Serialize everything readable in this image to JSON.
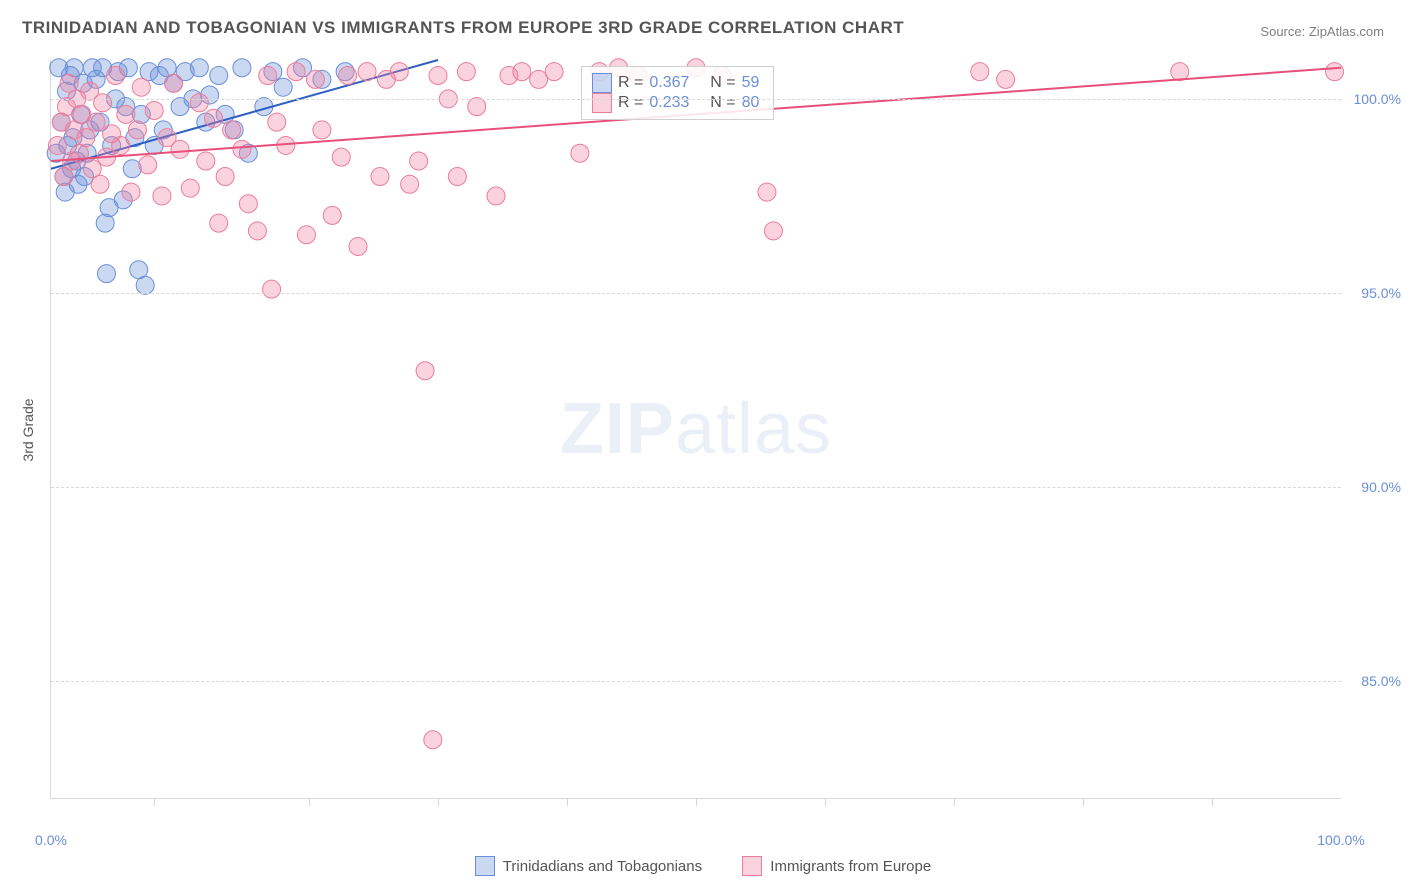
{
  "title": "TRINIDADIAN AND TOBAGONIAN VS IMMIGRANTS FROM EUROPE 3RD GRADE CORRELATION CHART",
  "source_label": "Source:",
  "source_value": "ZipAtlas.com",
  "yaxis_label": "3rd Grade",
  "watermark_a": "ZIP",
  "watermark_b": "atlas",
  "chart": {
    "type": "scatter",
    "xlim": [
      0,
      100
    ],
    "ylim": [
      82,
      101
    ],
    "background_color": "#ffffff",
    "grid_color": "#d8d8d8",
    "grid_dash": true,
    "marker_radius": 9,
    "marker_opacity": 0.55,
    "line_width": 2,
    "yticks": [
      {
        "v": 85,
        "label": "85.0%"
      },
      {
        "v": 90,
        "label": "90.0%"
      },
      {
        "v": 95,
        "label": "95.0%"
      },
      {
        "v": 100,
        "label": "100.0%"
      }
    ],
    "xticks_minor": [
      8,
      20,
      30,
      40,
      50,
      60,
      70,
      80,
      90
    ],
    "xtick_labels": [
      {
        "v": 0,
        "label": "0.0%"
      },
      {
        "v": 100,
        "label": "100.0%"
      }
    ],
    "series": [
      {
        "id": "trinidad",
        "name": "Trinidadians and Tobagonians",
        "color_fill": "rgba(106,143,216,0.35)",
        "color_stroke": "#6a8fd8",
        "trend_color": "#2d5fc4",
        "r_value": "0.367",
        "n_value": "59",
        "trend": {
          "x1": 0,
          "y1": 98.2,
          "x2": 30,
          "y2": 101
        },
        "points": [
          [
            0.4,
            98.6
          ],
          [
            0.6,
            100.8
          ],
          [
            0.8,
            99.4
          ],
          [
            1.0,
            98.0
          ],
          [
            1.1,
            97.6
          ],
          [
            1.2,
            100.2
          ],
          [
            1.3,
            98.8
          ],
          [
            1.5,
            100.6
          ],
          [
            1.6,
            98.2
          ],
          [
            1.7,
            99.0
          ],
          [
            1.8,
            100.8
          ],
          [
            2.0,
            98.4
          ],
          [
            2.1,
            97.8
          ],
          [
            2.3,
            99.6
          ],
          [
            2.5,
            100.4
          ],
          [
            2.6,
            98.0
          ],
          [
            2.8,
            98.6
          ],
          [
            3.0,
            99.2
          ],
          [
            3.2,
            100.8
          ],
          [
            3.5,
            100.5
          ],
          [
            3.8,
            99.4
          ],
          [
            4.0,
            100.8
          ],
          [
            4.2,
            96.8
          ],
          [
            4.3,
            95.5
          ],
          [
            4.5,
            97.2
          ],
          [
            4.7,
            98.8
          ],
          [
            5.0,
            100.0
          ],
          [
            5.2,
            100.7
          ],
          [
            5.6,
            97.4
          ],
          [
            5.8,
            99.8
          ],
          [
            6.0,
            100.8
          ],
          [
            6.3,
            98.2
          ],
          [
            6.5,
            99.0
          ],
          [
            6.8,
            95.6
          ],
          [
            7.0,
            99.6
          ],
          [
            7.3,
            95.2
          ],
          [
            7.6,
            100.7
          ],
          [
            8.0,
            98.8
          ],
          [
            8.4,
            100.6
          ],
          [
            8.7,
            99.2
          ],
          [
            9.0,
            100.8
          ],
          [
            9.5,
            100.4
          ],
          [
            10.0,
            99.8
          ],
          [
            10.4,
            100.7
          ],
          [
            11.0,
            100.0
          ],
          [
            11.5,
            100.8
          ],
          [
            12.0,
            99.4
          ],
          [
            12.3,
            100.1
          ],
          [
            13.0,
            100.6
          ],
          [
            13.5,
            99.6
          ],
          [
            14.2,
            99.2
          ],
          [
            14.8,
            100.8
          ],
          [
            15.3,
            98.6
          ],
          [
            16.5,
            99.8
          ],
          [
            17.2,
            100.7
          ],
          [
            18.0,
            100.3
          ],
          [
            19.5,
            100.8
          ],
          [
            21.0,
            100.5
          ],
          [
            22.8,
            100.7
          ]
        ]
      },
      {
        "id": "europe",
        "name": "Immigrants from Europe",
        "color_fill": "rgba(240,130,160,0.35)",
        "color_stroke": "#ec7d9b",
        "trend_color": "#e84f7a",
        "r_value": "0.233",
        "n_value": "80",
        "trend": {
          "x1": 0,
          "y1": 98.4,
          "x2": 100,
          "y2": 100.8
        },
        "points": [
          [
            0.5,
            98.8
          ],
          [
            0.8,
            99.4
          ],
          [
            1.0,
            98.0
          ],
          [
            1.2,
            99.8
          ],
          [
            1.4,
            100.4
          ],
          [
            1.6,
            98.4
          ],
          [
            1.8,
            99.2
          ],
          [
            2.0,
            100.0
          ],
          [
            2.2,
            98.6
          ],
          [
            2.4,
            99.6
          ],
          [
            2.7,
            99.0
          ],
          [
            3.0,
            100.2
          ],
          [
            3.2,
            98.2
          ],
          [
            3.5,
            99.4
          ],
          [
            3.8,
            97.8
          ],
          [
            4.0,
            99.9
          ],
          [
            4.3,
            98.5
          ],
          [
            4.7,
            99.1
          ],
          [
            5.0,
            100.6
          ],
          [
            5.4,
            98.8
          ],
          [
            5.8,
            99.6
          ],
          [
            6.2,
            97.6
          ],
          [
            6.7,
            99.2
          ],
          [
            7.0,
            100.3
          ],
          [
            7.5,
            98.3
          ],
          [
            8.0,
            99.7
          ],
          [
            8.6,
            97.5
          ],
          [
            9.0,
            99.0
          ],
          [
            9.5,
            100.4
          ],
          [
            10.0,
            98.7
          ],
          [
            10.8,
            97.7
          ],
          [
            11.5,
            99.9
          ],
          [
            12.0,
            98.4
          ],
          [
            12.6,
            99.5
          ],
          [
            13.0,
            96.8
          ],
          [
            13.5,
            98.0
          ],
          [
            14.0,
            99.2
          ],
          [
            14.8,
            98.7
          ],
          [
            15.3,
            97.3
          ],
          [
            16.0,
            96.6
          ],
          [
            16.8,
            100.6
          ],
          [
            17.1,
            95.1
          ],
          [
            17.5,
            99.4
          ],
          [
            18.2,
            98.8
          ],
          [
            19.0,
            100.7
          ],
          [
            19.8,
            96.5
          ],
          [
            20.5,
            100.5
          ],
          [
            21.0,
            99.2
          ],
          [
            21.8,
            97.0
          ],
          [
            22.5,
            98.5
          ],
          [
            23.0,
            100.6
          ],
          [
            23.8,
            96.2
          ],
          [
            24.5,
            100.7
          ],
          [
            25.5,
            98.0
          ],
          [
            26.0,
            100.5
          ],
          [
            27.0,
            100.7
          ],
          [
            27.8,
            97.8
          ],
          [
            28.5,
            98.4
          ],
          [
            29.0,
            93.0
          ],
          [
            29.6,
            83.5
          ],
          [
            30.0,
            100.6
          ],
          [
            30.8,
            100.0
          ],
          [
            31.5,
            98.0
          ],
          [
            32.2,
            100.7
          ],
          [
            33.0,
            99.8
          ],
          [
            34.5,
            97.5
          ],
          [
            35.5,
            100.6
          ],
          [
            36.5,
            100.7
          ],
          [
            37.8,
            100.5
          ],
          [
            39.0,
            100.7
          ],
          [
            41.0,
            98.6
          ],
          [
            42.5,
            100.7
          ],
          [
            44.0,
            100.8
          ],
          [
            45.5,
            100.6
          ],
          [
            50.0,
            100.8
          ],
          [
            52.0,
            100.6
          ],
          [
            55.5,
            97.6
          ],
          [
            56.0,
            96.6
          ],
          [
            72.0,
            100.7
          ],
          [
            74.0,
            100.5
          ],
          [
            87.5,
            100.7
          ],
          [
            99.5,
            100.7
          ]
        ]
      }
    ]
  },
  "legend": {
    "r_label": "R =",
    "n_label": "N ="
  },
  "colors": {
    "text_muted": "#555555",
    "axis_value": "#6a8fd8"
  }
}
